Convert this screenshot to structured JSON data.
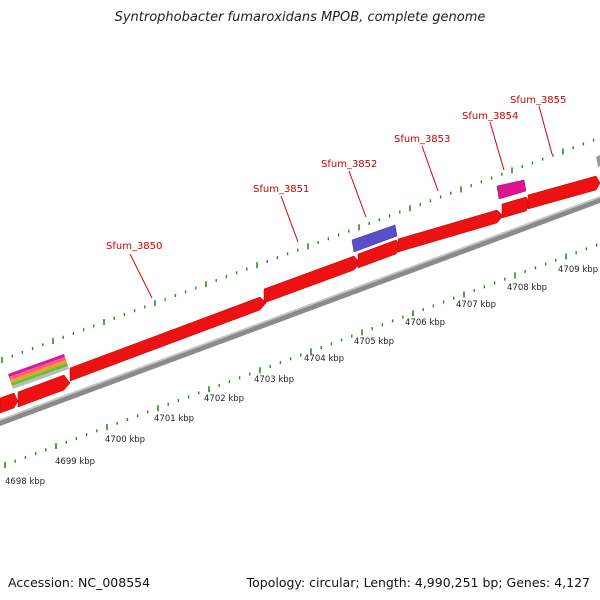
{
  "title": "Syntrophobacter fumaroxidans MPOB, complete genome",
  "footer": {
    "accession": "Accession: NC_008554",
    "summary": "Topology: circular; Length: 4,990,251 bp; Genes: 4,127"
  },
  "colors": {
    "gene_red": "#ee1111",
    "backbone": "#888888",
    "tick_green": "#2a8a2a",
    "label_red": "#cc0000",
    "purple_feature": "#5a4fc8",
    "magenta_feature": "#e0138f"
  },
  "gene_labels": [
    "Sfum_3850",
    "Sfum_3851",
    "Sfum_3852",
    "Sfum_3853",
    "Sfum_3854",
    "Sfum_3855"
  ],
  "kbp_labels": [
    "4698 kbp",
    "4699 kbp",
    "4700 kbp",
    "4701 kbp",
    "4702 kbp",
    "4703 kbp",
    "4704 kbp",
    "4705 kbp",
    "4706 kbp",
    "4707 kbp",
    "4708 kbp",
    "4709 kbp"
  ]
}
